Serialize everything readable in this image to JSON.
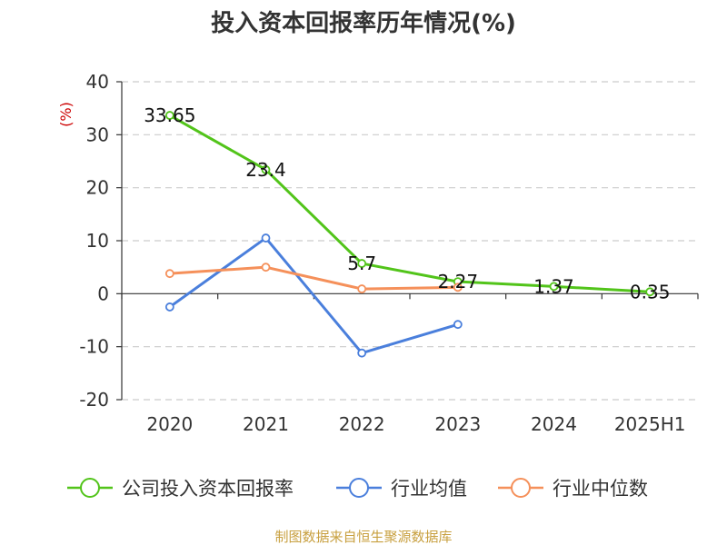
{
  "chart_data": {
    "type": "line",
    "title": "投入资本回报率历年情况(%)",
    "ylabel": "(%)",
    "ylim": [
      -20,
      40
    ],
    "yticks": [
      40,
      30,
      20,
      10,
      0,
      -10,
      -20
    ],
    "grid": true,
    "legend_position": "bottom",
    "categories": [
      "2020",
      "2021",
      "2022",
      "2023",
      "2024",
      "2025H1"
    ],
    "series": [
      {
        "name": "公司投入资本回报率",
        "color": "#52c41a",
        "values": [
          33.65,
          23.4,
          5.7,
          2.27,
          1.37,
          0.35
        ],
        "labels": [
          "33.65",
          "23.4",
          "5.7",
          "2.27",
          "1.37",
          "0.35"
        ]
      },
      {
        "name": "行业均值",
        "color": "#4a7fdc",
        "values": [
          -2.5,
          10.5,
          -11.2,
          -5.8,
          null,
          null
        ]
      },
      {
        "name": "行业中位数",
        "color": "#f5905a",
        "values": [
          3.8,
          5.0,
          0.9,
          1.2,
          null,
          null
        ]
      }
    ]
  },
  "colors": {
    "unit_label": "#cc0000",
    "source": "#c8a040",
    "axis": "#333333",
    "grid": "#cccccc"
  },
  "source_text": "制图数据来自恒生聚源数据库"
}
